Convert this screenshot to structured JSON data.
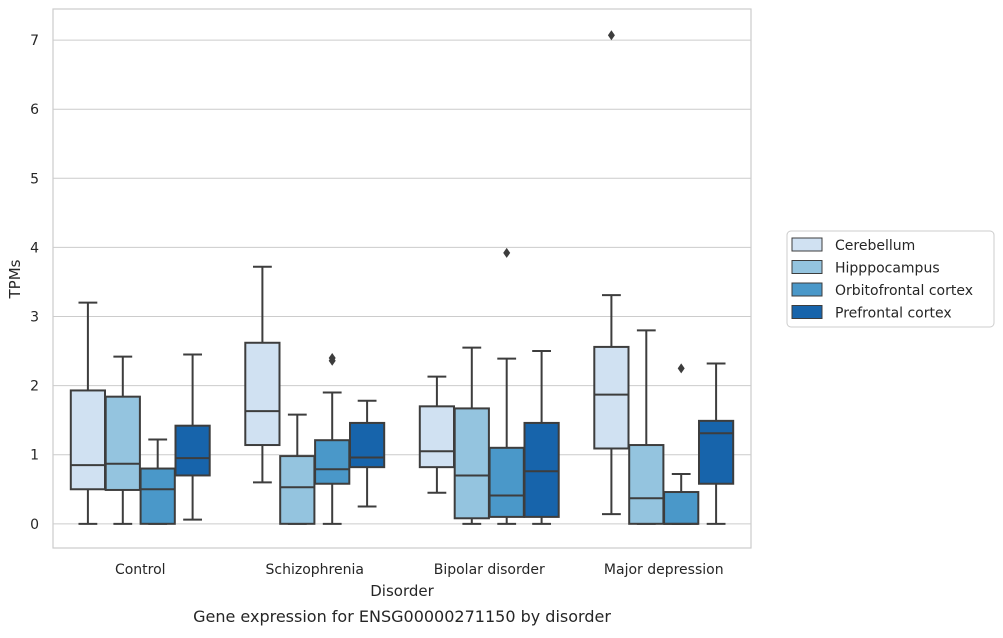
{
  "chart_data": {
    "type": "boxplot",
    "caption": "Gene expression for ENSG00000271150 by disorder",
    "xlabel": "Disorder",
    "ylabel": "TPMs",
    "ylim": [
      -0.35,
      7.45
    ],
    "yticks": [
      "0",
      "1",
      "2",
      "3",
      "4",
      "5",
      "6",
      "7"
    ],
    "grid": true,
    "legend_position": "right",
    "categories": [
      "Control",
      "Schizophrenia",
      "Bipolar disorder",
      "Major depression"
    ],
    "series": [
      {
        "name": "Cerebellum",
        "color": "#d0e1f2",
        "boxes": [
          {
            "whislo": 0.0,
            "q1": 0.5,
            "med": 0.85,
            "q3": 1.93,
            "whishi": 3.2,
            "fliers": []
          },
          {
            "whislo": 0.6,
            "q1": 1.14,
            "med": 1.63,
            "q3": 2.62,
            "whishi": 3.72,
            "fliers": []
          },
          {
            "whislo": 0.45,
            "q1": 0.82,
            "med": 1.05,
            "q3": 1.7,
            "whishi": 2.13,
            "fliers": []
          },
          {
            "whislo": 0.14,
            "q1": 1.09,
            "med": 1.87,
            "q3": 2.56,
            "whishi": 3.31,
            "fliers": [
              7.07
            ]
          }
        ]
      },
      {
        "name": "Hipppocampus",
        "color": "#94c4df",
        "boxes": [
          {
            "whislo": 0.0,
            "q1": 0.49,
            "med": 0.87,
            "q3": 1.84,
            "whishi": 2.42,
            "fliers": []
          },
          {
            "whislo": 0.0,
            "q1": 0.0,
            "med": 0.53,
            "q3": 0.98,
            "whishi": 1.58,
            "fliers": []
          },
          {
            "whislo": 0.0,
            "q1": 0.08,
            "med": 0.7,
            "q3": 1.67,
            "whishi": 2.55,
            "fliers": []
          },
          {
            "whislo": 0.0,
            "q1": 0.0,
            "med": 0.37,
            "q3": 1.14,
            "whishi": 2.8,
            "fliers": []
          }
        ]
      },
      {
        "name": "Orbitofrontal cortex",
        "color": "#4a98c9",
        "boxes": [
          {
            "whislo": 0.0,
            "q1": 0.0,
            "med": 0.5,
            "q3": 0.8,
            "whishi": 1.22,
            "fliers": []
          },
          {
            "whislo": 0.0,
            "q1": 0.58,
            "med": 0.79,
            "q3": 1.21,
            "whishi": 1.9,
            "fliers": [
              2.36,
              2.4
            ]
          },
          {
            "whislo": 0.0,
            "q1": 0.1,
            "med": 0.41,
            "q3": 1.1,
            "whishi": 2.39,
            "fliers": [
              3.92
            ]
          },
          {
            "whislo": 0.0,
            "q1": 0.0,
            "med": 0.0,
            "q3": 0.46,
            "whishi": 0.72,
            "fliers": [
              2.25
            ]
          }
        ]
      },
      {
        "name": "Prefrontal cortex",
        "color": "#1764ab",
        "boxes": [
          {
            "whislo": 0.06,
            "q1": 0.7,
            "med": 0.95,
            "q3": 1.42,
            "whishi": 2.45,
            "fliers": []
          },
          {
            "whislo": 0.25,
            "q1": 0.82,
            "med": 0.96,
            "q3": 1.46,
            "whishi": 1.78,
            "fliers": []
          },
          {
            "whislo": 0.0,
            "q1": 0.1,
            "med": 0.76,
            "q3": 1.46,
            "whishi": 2.5,
            "fliers": []
          },
          {
            "whislo": 0.0,
            "q1": 0.58,
            "med": 1.31,
            "q3": 1.49,
            "whishi": 2.32,
            "fliers": []
          }
        ]
      }
    ]
  }
}
